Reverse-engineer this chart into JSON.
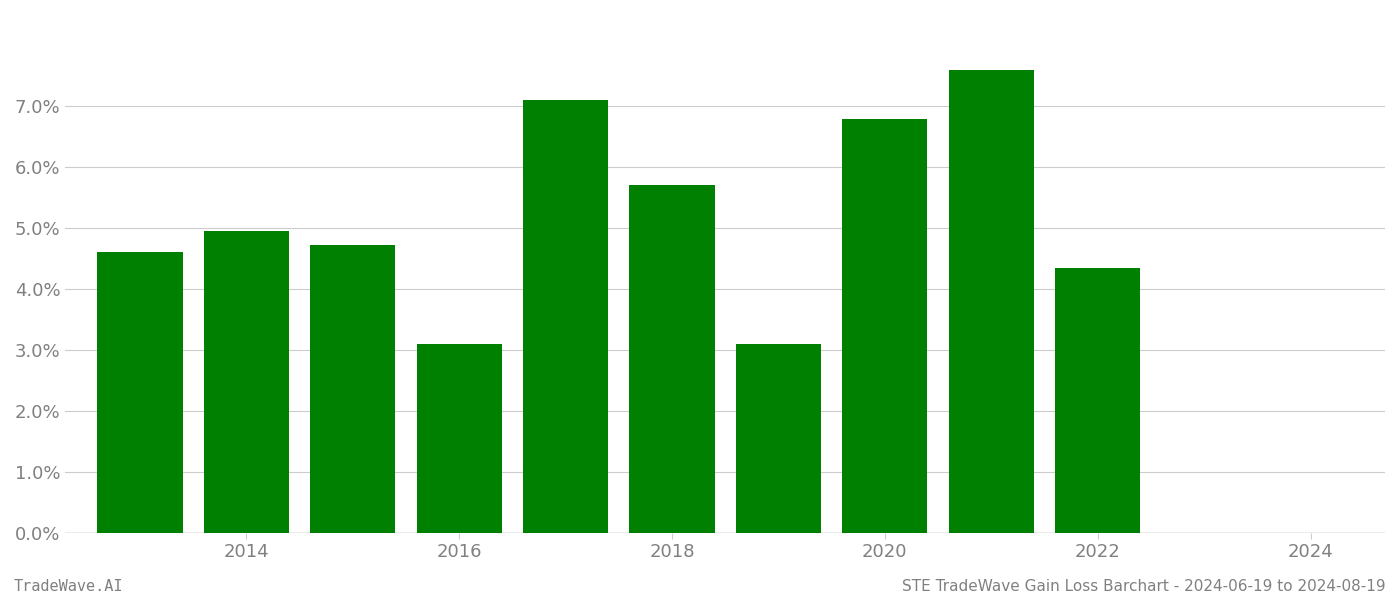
{
  "years": [
    2013,
    2014,
    2015,
    2016,
    2017,
    2018,
    2019,
    2020,
    2021,
    2022,
    2023
  ],
  "values": [
    0.046,
    0.0495,
    0.0472,
    0.031,
    0.071,
    0.057,
    0.031,
    0.068,
    0.076,
    0.0435,
    0.0
  ],
  "bar_color": "#008000",
  "background_color": "#ffffff",
  "grid_color": "#cccccc",
  "ylabel_color": "#808080",
  "xlabel_color": "#808080",
  "footer_left": "TradeWave.AI",
  "footer_right": "STE TradeWave Gain Loss Barchart - 2024-06-19 to 2024-08-19",
  "ylim": [
    0,
    0.085
  ],
  "yticks": [
    0.0,
    0.01,
    0.02,
    0.03,
    0.04,
    0.05,
    0.06,
    0.07
  ],
  "xtick_positions": [
    2014,
    2016,
    2018,
    2020,
    2022,
    2024
  ],
  "xtick_labels": [
    "2014",
    "2016",
    "2018",
    "2020",
    "2022",
    "2024"
  ],
  "bar_width": 0.8,
  "footer_fontsize": 11,
  "tick_fontsize": 13
}
